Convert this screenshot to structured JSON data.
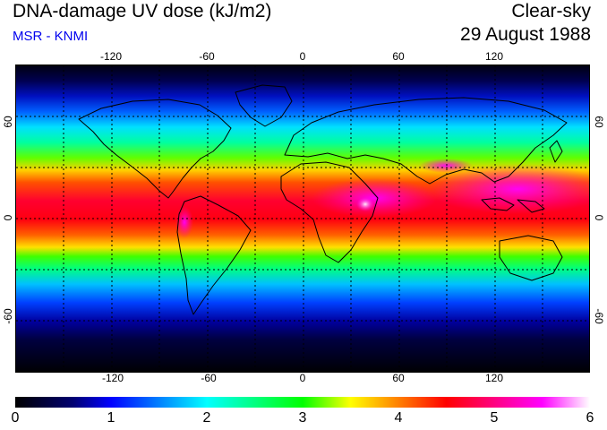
{
  "header": {
    "title": "DNA-damage UV dose (kJ/m2)",
    "source": "MSR - KNMI",
    "sky": "Clear-sky",
    "date": "29 August 1988",
    "source_color": "#0000ee"
  },
  "map": {
    "lon_ticks": [
      "-120",
      "-60",
      "0",
      "60",
      "120"
    ],
    "lat_ticks_left": [
      "60",
      "0",
      "-60"
    ],
    "lat_ticks_right": [
      "60",
      "0",
      "-60"
    ]
  },
  "colorbar": {
    "labels": [
      "0",
      "1",
      "2",
      "3",
      "4",
      "5",
      "6"
    ],
    "min": 0,
    "max": 6,
    "unit": "kJ/m2",
    "stops": [
      {
        "value": 0.0,
        "color": "#000000"
      },
      {
        "value": 0.6,
        "color": "#000070"
      },
      {
        "value": 1.0,
        "color": "#0000ff"
      },
      {
        "value": 1.5,
        "color": "#0080ff"
      },
      {
        "value": 2.0,
        "color": "#00ffff"
      },
      {
        "value": 2.5,
        "color": "#00ff80"
      },
      {
        "value": 3.0,
        "color": "#00ff00"
      },
      {
        "value": 3.5,
        "color": "#ffff00"
      },
      {
        "value": 4.0,
        "color": "#ff8000"
      },
      {
        "value": 4.5,
        "color": "#ff0000"
      },
      {
        "value": 5.0,
        "color": "#ff0080"
      },
      {
        "value": 5.5,
        "color": "#ff00ff"
      },
      {
        "value": 6.0,
        "color": "#ffffff"
      }
    ]
  }
}
